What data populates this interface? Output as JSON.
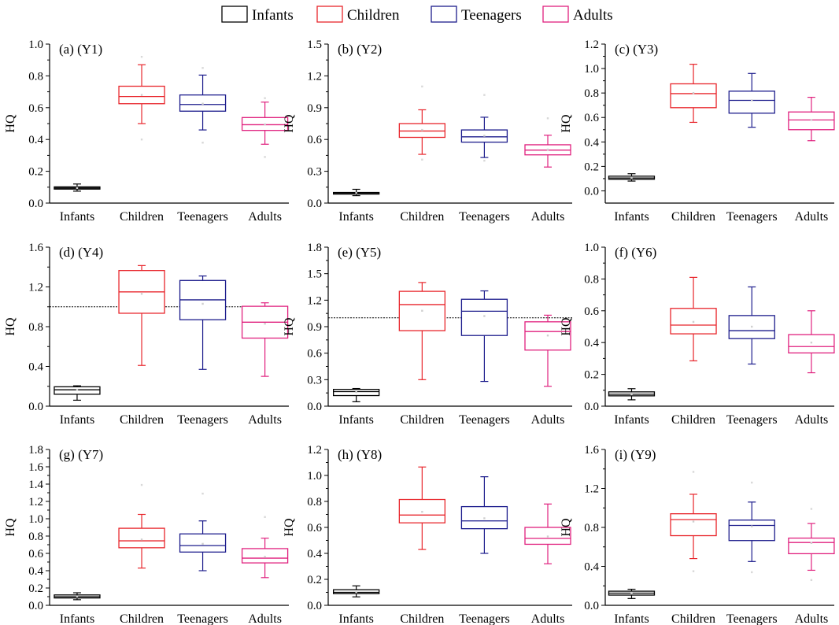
{
  "legend": {
    "placement": "top",
    "items": [
      {
        "label": "Infants",
        "color": "#000000"
      },
      {
        "label": "Children",
        "color": "#e8252b"
      },
      {
        "label": "Teenagers",
        "color": "#1c1c8c"
      },
      {
        "label": "Adults",
        "color": "#e0207e"
      }
    ]
  },
  "chart_data": [
    {
      "type": "box",
      "title": "(a)  (Y1)",
      "ylabel": "HQ",
      "ylim": [
        0,
        1.0
      ],
      "yticks": [
        "0.0",
        "0.2",
        "0.4",
        "0.6",
        "0.8",
        "1.0"
      ],
      "ytick_values": [
        0,
        0.2,
        0.4,
        0.6,
        0.8,
        1.0
      ],
      "categories": [
        "Infants",
        "Children",
        "Teenagers",
        "Adults"
      ],
      "reference_line": null,
      "boxes": [
        {
          "min": 0.075,
          "q1": 0.088,
          "median": 0.095,
          "q3": 0.102,
          "max": 0.12,
          "mean": 0.095,
          "outliers": []
        },
        {
          "min": 0.5,
          "q1": 0.625,
          "median": 0.67,
          "q3": 0.735,
          "max": 0.87,
          "mean": 0.68,
          "outliers": [
            0.4,
            0.92
          ]
        },
        {
          "min": 0.46,
          "q1": 0.578,
          "median": 0.62,
          "q3": 0.68,
          "max": 0.805,
          "mean": 0.625,
          "outliers": [
            0.38,
            0.85
          ]
        },
        {
          "min": 0.37,
          "q1": 0.457,
          "median": 0.493,
          "q3": 0.538,
          "max": 0.635,
          "mean": 0.495,
          "outliers": [
            0.29,
            0.66
          ]
        }
      ]
    },
    {
      "type": "box",
      "title": "(b) (Y2)",
      "ylabel": "HQ",
      "ylim": [
        0,
        1.5
      ],
      "yticks": [
        "0.0",
        "0.3",
        "0.6",
        "0.9",
        "1.2",
        "1.5"
      ],
      "ytick_values": [
        0,
        0.3,
        0.6,
        0.9,
        1.2,
        1.5
      ],
      "categories": [
        "Infants",
        "Children",
        "Teenagers",
        "Adults"
      ],
      "reference_line": null,
      "boxes": [
        {
          "min": 0.07,
          "q1": 0.085,
          "median": 0.095,
          "q3": 0.1,
          "max": 0.13,
          "mean": 0.095,
          "outliers": []
        },
        {
          "min": 0.46,
          "q1": 0.62,
          "median": 0.68,
          "q3": 0.75,
          "max": 0.88,
          "mean": 0.69,
          "outliers": [
            0.41,
            1.1
          ]
        },
        {
          "min": 0.43,
          "q1": 0.575,
          "median": 0.625,
          "q3": 0.69,
          "max": 0.81,
          "mean": 0.635,
          "outliers": [
            0.4,
            1.02
          ]
        },
        {
          "min": 0.34,
          "q1": 0.455,
          "median": 0.5,
          "q3": 0.55,
          "max": 0.64,
          "mean": 0.505,
          "outliers": [
            0.8
          ]
        }
      ]
    },
    {
      "type": "box",
      "title": "(c) (Y3)",
      "ylabel": "HQ",
      "ylim": [
        -0.1,
        1.2
      ],
      "yticks": [
        "0.0",
        "0.2",
        "0.4",
        "0.6",
        "0.8",
        "1.0",
        "1.2"
      ],
      "ytick_values": [
        0,
        0.2,
        0.4,
        0.6,
        0.8,
        1.0,
        1.2
      ],
      "categories": [
        "Infants",
        "Children",
        "Teenagers",
        "Adults"
      ],
      "reference_line": null,
      "boxes": [
        {
          "min": 0.08,
          "q1": 0.095,
          "median": 0.105,
          "q3": 0.12,
          "max": 0.14,
          "mean": 0.105,
          "outliers": []
        },
        {
          "min": 0.56,
          "q1": 0.68,
          "median": 0.795,
          "q3": 0.875,
          "max": 1.035,
          "mean": 0.8,
          "outliers": []
        },
        {
          "min": 0.52,
          "q1": 0.635,
          "median": 0.74,
          "q3": 0.815,
          "max": 0.96,
          "mean": 0.74,
          "outliers": []
        },
        {
          "min": 0.41,
          "q1": 0.5,
          "median": 0.58,
          "q3": 0.645,
          "max": 0.765,
          "mean": 0.58,
          "outliers": []
        }
      ]
    },
    {
      "type": "box",
      "title": "(d) (Y4)",
      "ylabel": "HQ",
      "ylim": [
        0,
        1.6
      ],
      "yticks": [
        "0.0",
        "0.4",
        "0.8",
        "1.2",
        "1.6"
      ],
      "ytick_values": [
        0,
        0.4,
        0.8,
        1.2,
        1.6
      ],
      "categories": [
        "Infants",
        "Children",
        "Teenagers",
        "Adults"
      ],
      "reference_line": 1.0,
      "boxes": [
        {
          "min": 0.06,
          "q1": 0.12,
          "median": 0.165,
          "q3": 0.195,
          "max": 0.205,
          "mean": 0.165,
          "outliers": []
        },
        {
          "min": 0.41,
          "q1": 0.935,
          "median": 1.15,
          "q3": 1.365,
          "max": 1.415,
          "mean": 1.13,
          "outliers": []
        },
        {
          "min": 0.37,
          "q1": 0.87,
          "median": 1.07,
          "q3": 1.265,
          "max": 1.31,
          "mean": 1.03,
          "outliers": []
        },
        {
          "min": 0.3,
          "q1": 0.685,
          "median": 0.845,
          "q3": 1.005,
          "max": 1.04,
          "mean": 0.83,
          "outliers": []
        }
      ]
    },
    {
      "type": "box",
      "title": "(e) (Y5)",
      "ylabel": "HQ",
      "ylim": [
        0,
        1.8
      ],
      "yticks": [
        "0.0",
        "0.3",
        "0.6",
        "0.9",
        "1.2",
        "1.5",
        "1.8"
      ],
      "ytick_values": [
        0,
        0.3,
        0.6,
        0.9,
        1.2,
        1.5,
        1.8
      ],
      "categories": [
        "Infants",
        "Children",
        "Teenagers",
        "Adults"
      ],
      "reference_line": 1.0,
      "boxes": [
        {
          "min": 0.05,
          "q1": 0.12,
          "median": 0.165,
          "q3": 0.19,
          "max": 0.2,
          "mean": 0.16,
          "outliers": []
        },
        {
          "min": 0.3,
          "q1": 0.855,
          "median": 1.15,
          "q3": 1.3,
          "max": 1.4,
          "mean": 1.08,
          "outliers": []
        },
        {
          "min": 0.28,
          "q1": 0.8,
          "median": 1.075,
          "q3": 1.21,
          "max": 1.305,
          "mean": 1.02,
          "outliers": []
        },
        {
          "min": 0.225,
          "q1": 0.635,
          "median": 0.845,
          "q3": 0.955,
          "max": 1.03,
          "mean": 0.8,
          "outliers": []
        }
      ]
    },
    {
      "type": "box",
      "title": "(f) (Y6)",
      "ylabel": "HQ",
      "ylim": [
        0,
        1.0
      ],
      "yticks": [
        "0.0",
        "0.2",
        "0.4",
        "0.6",
        "0.8",
        "1.0"
      ],
      "ytick_values": [
        0,
        0.2,
        0.4,
        0.6,
        0.8,
        1.0
      ],
      "categories": [
        "Infants",
        "Children",
        "Teenagers",
        "Adults"
      ],
      "reference_line": null,
      "boxes": [
        {
          "min": 0.04,
          "q1": 0.065,
          "median": 0.075,
          "q3": 0.09,
          "max": 0.11,
          "mean": 0.078,
          "outliers": []
        },
        {
          "min": 0.285,
          "q1": 0.455,
          "median": 0.51,
          "q3": 0.615,
          "max": 0.81,
          "mean": 0.53,
          "outliers": []
        },
        {
          "min": 0.265,
          "q1": 0.425,
          "median": 0.475,
          "q3": 0.57,
          "max": 0.75,
          "mean": 0.5,
          "outliers": []
        },
        {
          "min": 0.21,
          "q1": 0.335,
          "median": 0.375,
          "q3": 0.45,
          "max": 0.6,
          "mean": 0.4,
          "outliers": []
        }
      ]
    },
    {
      "type": "box",
      "title": "(g) (Y7)",
      "ylabel": "HQ",
      "ylim": [
        0,
        1.8
      ],
      "yticks": [
        "0.0",
        "0.2",
        "0.4",
        "0.6",
        "0.8",
        "1.0",
        "1.2",
        "1.4",
        "1.6",
        "1.8"
      ],
      "ytick_values": [
        0,
        0.2,
        0.4,
        0.6,
        0.8,
        1.0,
        1.2,
        1.4,
        1.6,
        1.8
      ],
      "categories": [
        "Infants",
        "Children",
        "Teenagers",
        "Adults"
      ],
      "reference_line": null,
      "boxes": [
        {
          "min": 0.065,
          "q1": 0.085,
          "median": 0.1,
          "q3": 0.12,
          "max": 0.145,
          "mean": 0.1,
          "outliers": []
        },
        {
          "min": 0.43,
          "q1": 0.665,
          "median": 0.745,
          "q3": 0.89,
          "max": 1.05,
          "mean": 0.76,
          "outliers": [
            1.39
          ]
        },
        {
          "min": 0.4,
          "q1": 0.615,
          "median": 0.69,
          "q3": 0.825,
          "max": 0.975,
          "mean": 0.71,
          "outliers": [
            1.29
          ]
        },
        {
          "min": 0.32,
          "q1": 0.49,
          "median": 0.545,
          "q3": 0.655,
          "max": 0.775,
          "mean": 0.56,
          "outliers": [
            1.02
          ]
        }
      ]
    },
    {
      "type": "box",
      "title": "(h) (Y8)",
      "ylabel": "HQ",
      "ylim": [
        0,
        1.2
      ],
      "yticks": [
        "0.0",
        "0.2",
        "0.4",
        "0.6",
        "0.8",
        "1.0",
        "1.2"
      ],
      "ytick_values": [
        0,
        0.2,
        0.4,
        0.6,
        0.8,
        1.0,
        1.2
      ],
      "categories": [
        "Infants",
        "Children",
        "Teenagers",
        "Adults"
      ],
      "reference_line": null,
      "boxes": [
        {
          "min": 0.065,
          "q1": 0.09,
          "median": 0.1,
          "q3": 0.12,
          "max": 0.15,
          "mean": 0.1,
          "outliers": []
        },
        {
          "min": 0.43,
          "q1": 0.635,
          "median": 0.695,
          "q3": 0.815,
          "max": 1.065,
          "mean": 0.72,
          "outliers": []
        },
        {
          "min": 0.4,
          "q1": 0.59,
          "median": 0.65,
          "q3": 0.76,
          "max": 0.99,
          "mean": 0.67,
          "outliers": []
        },
        {
          "min": 0.32,
          "q1": 0.47,
          "median": 0.515,
          "q3": 0.6,
          "max": 0.78,
          "mean": 0.53,
          "outliers": []
        }
      ]
    },
    {
      "type": "box",
      "title": "(i) (Y9)",
      "ylabel": "HQ",
      "ylim": [
        0,
        1.6
      ],
      "yticks": [
        "0.0",
        "0.4",
        "0.8",
        "1.2",
        "1.6"
      ],
      "ytick_values": [
        0,
        0.4,
        0.8,
        1.2,
        1.6
      ],
      "categories": [
        "Infants",
        "Children",
        "Teenagers",
        "Adults"
      ],
      "reference_line": null,
      "boxes": [
        {
          "min": 0.07,
          "q1": 0.105,
          "median": 0.125,
          "q3": 0.145,
          "max": 0.165,
          "mean": 0.125,
          "outliers": []
        },
        {
          "min": 0.48,
          "q1": 0.715,
          "median": 0.88,
          "q3": 0.94,
          "max": 1.14,
          "mean": 0.86,
          "outliers": [
            0.35,
            1.37
          ]
        },
        {
          "min": 0.45,
          "q1": 0.665,
          "median": 0.82,
          "q3": 0.875,
          "max": 1.06,
          "mean": 0.81,
          "outliers": [
            0.34,
            1.26
          ]
        },
        {
          "min": 0.36,
          "q1": 0.53,
          "median": 0.645,
          "q3": 0.69,
          "max": 0.84,
          "mean": 0.64,
          "outliers": [
            0.26,
            0.99
          ]
        }
      ]
    }
  ]
}
